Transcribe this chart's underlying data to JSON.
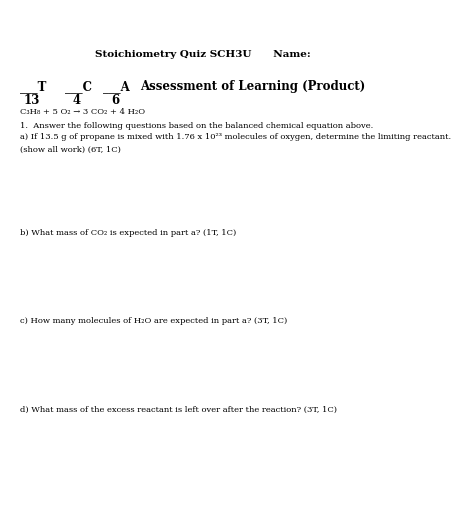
{
  "title_line": "Stoichiometry Quiz SCH3U      Name:",
  "grade_label": "Assessment of Learning (Product)",
  "denom_T": "13",
  "denom_C": "4",
  "denom_A": "6",
  "equation": "C₃H₈ + 5 O₂ → 3 CO₂ + 4 H₂O",
  "q1_intro": "1.  Answer the following questions based on the balanced chemical equation above.",
  "q1a": "a) If 13.5 g of propane is mixed with 1.76 x 10²³ molecules of oxygen, determine the limiting reactant.",
  "q1a_note": "(show all work) (6T, 1C)",
  "q1b": "b) What mass of CO₂ is expected in part a? (1T, 1C)",
  "q1c": "c) How many molecules of H₂O are expected in part a? (3T, 1C)",
  "q1d": "d) What mass of the excess reactant is left over after the reaction? (3T, 1C)",
  "bg_color": "#ffffff",
  "text_color": "#000000",
  "font_size_title": 7.5,
  "font_size_body": 6.0,
  "font_size_grade": 8.5
}
